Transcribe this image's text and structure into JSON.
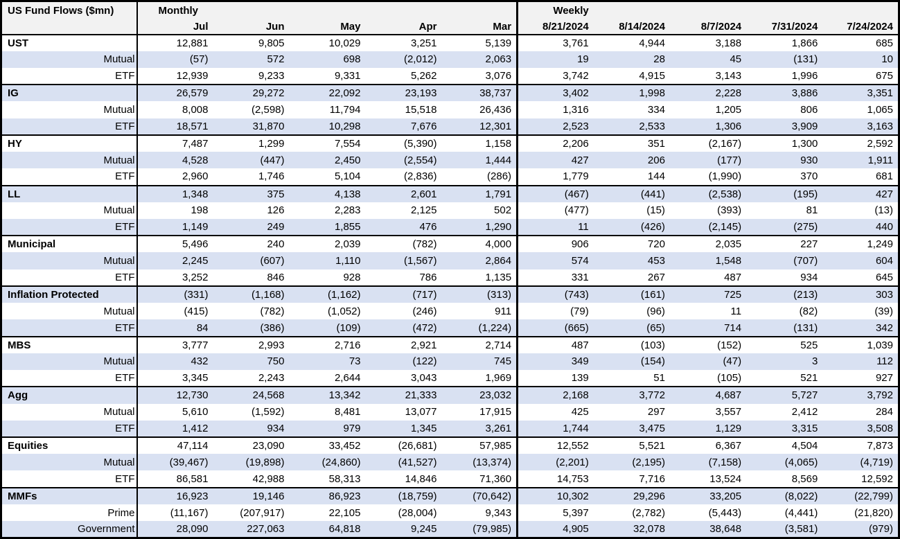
{
  "chart_data": {
    "type": "table",
    "title": "US Fund Flows ($mn)",
    "sections": [
      {
        "label": "Monthly",
        "columns": [
          "Jul",
          "Jun",
          "May",
          "Apr",
          "Mar"
        ]
      },
      {
        "label": "Weekly",
        "columns": [
          "8/21/2024",
          "8/14/2024",
          "8/7/2024",
          "7/31/2024",
          "7/24/2024"
        ]
      }
    ],
    "groups": [
      {
        "rows": [
          {
            "label": "UST",
            "values": [
              "12,881",
              "9,805",
              "10,029",
              "3,251",
              "5,139",
              "3,761",
              "4,944",
              "3,188",
              "1,866",
              "685"
            ]
          },
          {
            "label": "Mutual",
            "values": [
              "(57)",
              "572",
              "698",
              "(2,012)",
              "2,063",
              "19",
              "28",
              "45",
              "(131)",
              "10"
            ]
          },
          {
            "label": "ETF",
            "values": [
              "12,939",
              "9,233",
              "9,331",
              "5,262",
              "3,076",
              "3,742",
              "4,915",
              "3,143",
              "1,996",
              "675"
            ]
          }
        ]
      },
      {
        "rows": [
          {
            "label": "IG",
            "values": [
              "26,579",
              "29,272",
              "22,092",
              "23,193",
              "38,737",
              "3,402",
              "1,998",
              "2,228",
              "3,886",
              "3,351"
            ]
          },
          {
            "label": "Mutual",
            "values": [
              "8,008",
              "(2,598)",
              "11,794",
              "15,518",
              "26,436",
              "1,316",
              "334",
              "1,205",
              "806",
              "1,065"
            ]
          },
          {
            "label": "ETF",
            "values": [
              "18,571",
              "31,870",
              "10,298",
              "7,676",
              "12,301",
              "2,523",
              "2,533",
              "1,306",
              "3,909",
              "3,163"
            ]
          }
        ]
      },
      {
        "rows": [
          {
            "label": "HY",
            "values": [
              "7,487",
              "1,299",
              "7,554",
              "(5,390)",
              "1,158",
              "2,206",
              "351",
              "(2,167)",
              "1,300",
              "2,592"
            ]
          },
          {
            "label": "Mutual",
            "values": [
              "4,528",
              "(447)",
              "2,450",
              "(2,554)",
              "1,444",
              "427",
              "206",
              "(177)",
              "930",
              "1,911"
            ]
          },
          {
            "label": "ETF",
            "values": [
              "2,960",
              "1,746",
              "5,104",
              "(2,836)",
              "(286)",
              "1,779",
              "144",
              "(1,990)",
              "370",
              "681"
            ]
          }
        ]
      },
      {
        "rows": [
          {
            "label": "LL",
            "values": [
              "1,348",
              "375",
              "4,138",
              "2,601",
              "1,791",
              "(467)",
              "(441)",
              "(2,538)",
              "(195)",
              "427"
            ]
          },
          {
            "label": "Mutual",
            "values": [
              "198",
              "126",
              "2,283",
              "2,125",
              "502",
              "(477)",
              "(15)",
              "(393)",
              "81",
              "(13)"
            ]
          },
          {
            "label": "ETF",
            "values": [
              "1,149",
              "249",
              "1,855",
              "476",
              "1,290",
              "11",
              "(426)",
              "(2,145)",
              "(275)",
              "440"
            ]
          }
        ]
      },
      {
        "rows": [
          {
            "label": "Municipal",
            "values": [
              "5,496",
              "240",
              "2,039",
              "(782)",
              "4,000",
              "906",
              "720",
              "2,035",
              "227",
              "1,249"
            ]
          },
          {
            "label": "Mutual",
            "values": [
              "2,245",
              "(607)",
              "1,110",
              "(1,567)",
              "2,864",
              "574",
              "453",
              "1,548",
              "(707)",
              "604"
            ]
          },
          {
            "label": "ETF",
            "values": [
              "3,252",
              "846",
              "928",
              "786",
              "1,135",
              "331",
              "267",
              "487",
              "934",
              "645"
            ]
          }
        ]
      },
      {
        "rows": [
          {
            "label": "Inflation Protected",
            "values": [
              "(331)",
              "(1,168)",
              "(1,162)",
              "(717)",
              "(313)",
              "(743)",
              "(161)",
              "725",
              "(213)",
              "303"
            ]
          },
          {
            "label": "Mutual",
            "values": [
              "(415)",
              "(782)",
              "(1,052)",
              "(246)",
              "911",
              "(79)",
              "(96)",
              "11",
              "(82)",
              "(39)"
            ]
          },
          {
            "label": "ETF",
            "values": [
              "84",
              "(386)",
              "(109)",
              "(472)",
              "(1,224)",
              "(665)",
              "(65)",
              "714",
              "(131)",
              "342"
            ]
          }
        ]
      },
      {
        "rows": [
          {
            "label": "MBS",
            "values": [
              "3,777",
              "2,993",
              "2,716",
              "2,921",
              "2,714",
              "487",
              "(103)",
              "(152)",
              "525",
              "1,039"
            ]
          },
          {
            "label": "Mutual",
            "values": [
              "432",
              "750",
              "73",
              "(122)",
              "745",
              "349",
              "(154)",
              "(47)",
              "3",
              "112"
            ]
          },
          {
            "label": "ETF",
            "values": [
              "3,345",
              "2,243",
              "2,644",
              "3,043",
              "1,969",
              "139",
              "51",
              "(105)",
              "521",
              "927"
            ]
          }
        ]
      },
      {
        "rows": [
          {
            "label": "Agg",
            "values": [
              "12,730",
              "24,568",
              "13,342",
              "21,333",
              "23,032",
              "2,168",
              "3,772",
              "4,687",
              "5,727",
              "3,792"
            ]
          },
          {
            "label": "Mutual",
            "values": [
              "5,610",
              "(1,592)",
              "8,481",
              "13,077",
              "17,915",
              "425",
              "297",
              "3,557",
              "2,412",
              "284"
            ]
          },
          {
            "label": "ETF",
            "values": [
              "1,412",
              "934",
              "979",
              "1,345",
              "3,261",
              "1,744",
              "3,475",
              "1,129",
              "3,315",
              "3,508"
            ]
          }
        ]
      },
      {
        "rows": [
          {
            "label": "Equities",
            "values": [
              "47,114",
              "23,090",
              "33,452",
              "(26,681)",
              "57,985",
              "12,552",
              "5,521",
              "6,367",
              "4,504",
              "7,873"
            ]
          },
          {
            "label": "Mutual",
            "values": [
              "(39,467)",
              "(19,898)",
              "(24,860)",
              "(41,527)",
              "(13,374)",
              "(2,201)",
              "(2,195)",
              "(7,158)",
              "(4,065)",
              "(4,719)"
            ]
          },
          {
            "label": "ETF",
            "values": [
              "86,581",
              "42,988",
              "58,313",
              "14,846",
              "71,360",
              "14,753",
              "7,716",
              "13,524",
              "8,569",
              "12,592"
            ]
          }
        ]
      },
      {
        "rows": [
          {
            "label": "MMFs",
            "values": [
              "16,923",
              "19,146",
              "86,923",
              "(18,759)",
              "(70,642)",
              "10,302",
              "29,296",
              "33,205",
              "(8,022)",
              "(22,799)"
            ]
          },
          {
            "label": "Prime",
            "values": [
              "(11,167)",
              "(207,917)",
              "22,105",
              "(28,004)",
              "9,343",
              "5,397",
              "(2,782)",
              "(5,443)",
              "(4,441)",
              "(21,820)"
            ]
          },
          {
            "label": "Government",
            "values": [
              "28,090",
              "227,063",
              "64,818",
              "9,245",
              "(79,985)",
              "4,905",
              "32,078",
              "38,648",
              "(3,581)",
              "(979)"
            ]
          }
        ]
      }
    ],
    "layout": {
      "negative_style": "parentheses",
      "stripe_pattern": "alternating rows starting white"
    }
  },
  "colors": {
    "stripe": "#d9e1f2",
    "header_bg": "#f2f2f2",
    "border": "#000000",
    "text": "#000000",
    "row_bg": "#ffffff"
  }
}
